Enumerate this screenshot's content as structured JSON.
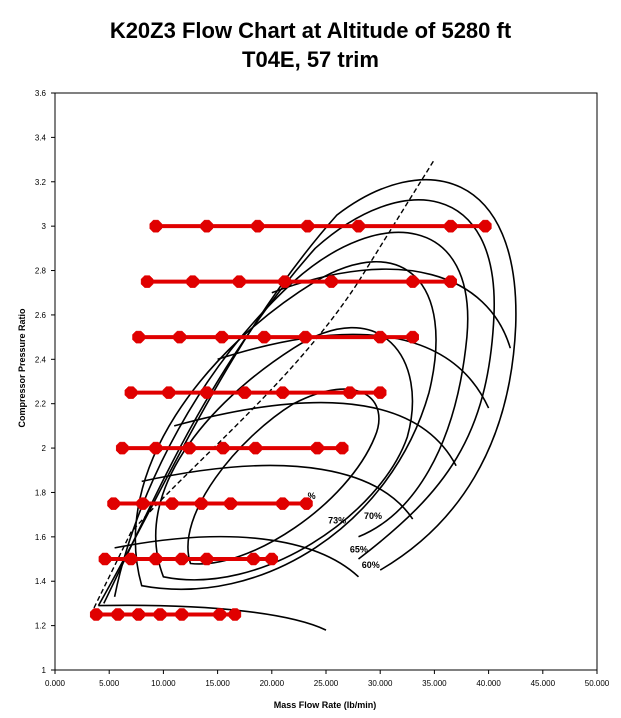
{
  "chart_data": {
    "type": "line",
    "title": "K20Z3 Flow Chart at Altitude of 5280 ft",
    "subtitle": "T04E, 57 trim",
    "xlabel": "Mass Flow Rate (lb/min)",
    "ylabel": "Compressor Pressure Ratio",
    "xlim": [
      0,
      50
    ],
    "ylim": [
      1,
      3.6
    ],
    "x_ticks": [
      "0.000",
      "5.000",
      "10.000",
      "15.000",
      "20.000",
      "25.000",
      "30.000",
      "35.000",
      "40.000",
      "45.000",
      "50.000"
    ],
    "y_ticks": [
      "1",
      "1.2",
      "1.4",
      "1.6",
      "1.8",
      "2",
      "2.2",
      "2.4",
      "2.6",
      "2.8",
      "3",
      "3.2",
      "3.4",
      "3.6"
    ],
    "x_tick_values": [
      0,
      5,
      10,
      15,
      20,
      25,
      30,
      35,
      40,
      45,
      50
    ],
    "y_tick_values": [
      1,
      1.2,
      1.4,
      1.6,
      1.8,
      2.0,
      2.2,
      2.4,
      2.6,
      2.8,
      3.0,
      3.2,
      3.4,
      3.6
    ],
    "grid": false,
    "annotations": [
      "%",
      "73%",
      "70%",
      "65%",
      "60%"
    ],
    "series_color": "#e00000",
    "series": [
      {
        "y": 3.0,
        "x": [
          9.3,
          14.0,
          18.7,
          23.3,
          28.0,
          36.5,
          39.7
        ]
      },
      {
        "y": 2.75,
        "x": [
          8.5,
          12.7,
          17.0,
          21.2,
          25.5,
          33.0,
          36.5
        ]
      },
      {
        "y": 2.5,
        "x": [
          7.7,
          11.5,
          15.4,
          19.3,
          23.1,
          30.0,
          33.0
        ]
      },
      {
        "y": 2.25,
        "x": [
          7.0,
          10.5,
          14.0,
          17.5,
          21.0,
          27.2,
          30.0
        ]
      },
      {
        "y": 2.0,
        "x": [
          6.2,
          9.3,
          12.4,
          15.5,
          18.5,
          24.2,
          26.5
        ]
      },
      {
        "y": 1.75,
        "x": [
          5.4,
          8.1,
          10.8,
          13.5,
          16.2,
          21.0,
          23.2
        ]
      },
      {
        "y": 1.5,
        "x": [
          4.6,
          7.0,
          9.3,
          11.7,
          14.0,
          18.3,
          20.0
        ]
      },
      {
        "y": 1.25,
        "x": [
          3.8,
          5.8,
          7.7,
          9.7,
          11.7,
          15.2,
          16.6
        ]
      }
    ]
  }
}
